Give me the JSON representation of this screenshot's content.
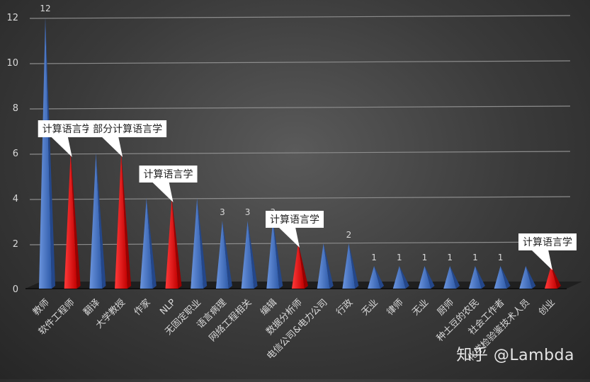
{
  "chart_data": {
    "type": "bar",
    "categories": [
      "教师",
      "软件工程师",
      "翻译",
      "大学教授",
      "作家",
      "NLP",
      "无固定职业",
      "语言病理",
      "网络工程相关",
      "编辑",
      "数据分析师",
      "电信公司&电力公司",
      "行政",
      "无业",
      "律师",
      "无业",
      "厨师",
      "种土豆的农民",
      "社会工作者",
      "化学检验鉴技术人员",
      "创业"
    ],
    "values": [
      12,
      6,
      6,
      6,
      4,
      4,
      4,
      3,
      3,
      3,
      2,
      2,
      2,
      1,
      1,
      1,
      1,
      1,
      1,
      1,
      1
    ],
    "highlighted": [
      false,
      true,
      false,
      true,
      false,
      true,
      false,
      false,
      false,
      false,
      true,
      false,
      false,
      false,
      false,
      false,
      false,
      false,
      false,
      false,
      true
    ],
    "data_labels": [
      "12",
      "",
      "",
      "",
      "",
      "",
      "",
      "3",
      "3",
      "3",
      "",
      "",
      "2",
      "1",
      "1",
      "1",
      "1",
      "1",
      "1",
      "",
      ""
    ],
    "callouts": [
      {
        "index": 1,
        "text": "计算语言学"
      },
      {
        "index": 3,
        "text": "部分计算语言学"
      },
      {
        "index": 5,
        "text": "计算语言学"
      },
      {
        "index": 10,
        "text": "计算语言学"
      },
      {
        "index": 20,
        "text": "计算语言学"
      }
    ],
    "yticks": [
      0,
      2,
      4,
      6,
      8,
      10,
      12
    ],
    "ylim": [
      0,
      12
    ],
    "grid": true,
    "legend": "none",
    "colors": {
      "normal": "#4472C4",
      "highlight": "#FF0000",
      "grid": "#8c8c8c",
      "text": "#d9d9d9"
    }
  },
  "watermark": "知乎 @Lambda"
}
